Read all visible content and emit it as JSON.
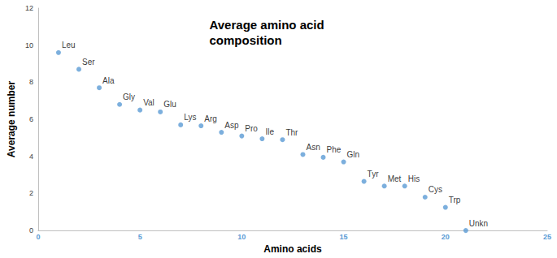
{
  "chart_data": {
    "type": "scatter",
    "title": "Average amino acid composition",
    "x_label": "Amino acids",
    "y_label": "Average number",
    "x": [
      1,
      2,
      3,
      4,
      5,
      6,
      7,
      8,
      9,
      10,
      11,
      12,
      13,
      14,
      15,
      16,
      17,
      18,
      19,
      20,
      21
    ],
    "values": [
      9.6,
      8.7,
      7.7,
      6.8,
      6.5,
      6.4,
      5.7,
      5.65,
      5.3,
      5.1,
      4.95,
      4.9,
      4.1,
      3.95,
      3.7,
      2.65,
      2.4,
      2.4,
      1.8,
      1.25,
      0
    ],
    "point_labels": [
      "Leu",
      "Ser",
      "Ala",
      "Gly",
      "Val",
      "Glu",
      "Lys",
      "Arg",
      "Asp",
      "Pro",
      "Ile",
      "Thr",
      "Asn",
      "Phe",
      "Gln",
      "Tyr",
      "Met",
      "His",
      "Cys",
      "Trp",
      "Unkn"
    ],
    "color": "#5b9bd5",
    "marker": "circle",
    "xlim": [
      0,
      25
    ],
    "xticks": [
      0,
      5,
      10,
      15,
      20,
      25
    ],
    "ylim": [
      0,
      12
    ],
    "yticks": [
      0,
      2,
      4,
      6,
      8,
      10,
      12
    ],
    "grid": false
  }
}
